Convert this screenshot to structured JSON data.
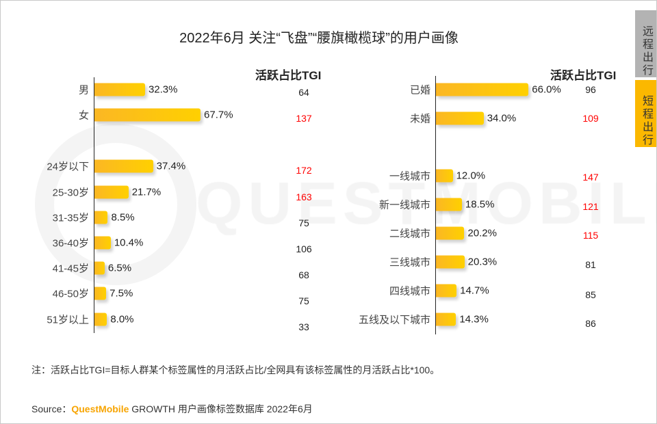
{
  "title": "2022年6月 关注“飞盘”“腰旗橄榄球”的用户画像",
  "watermark": "QUESTMOBILE",
  "tabs": [
    {
      "label": "远程出行",
      "color": "#b3b3b3",
      "active": false
    },
    {
      "label": "短程出行",
      "color": "#fbb800",
      "active": true
    }
  ],
  "tgi_header": "活跃占比TGI",
  "note": "注：活跃占比TGI=目标人群某个标签属性的月活跃占比/全网具有该标签属性的月活跃占比*100。",
  "source": {
    "prefix": "Source：",
    "brand": "QuestMobile",
    "text": "GROWTH 用户画像标签数据库 2022年6月"
  },
  "colors": {
    "bar_start": "#fbb724",
    "bar_end": "#ffd000",
    "tgi_high": "#ff0000"
  },
  "chart_data": [
    {
      "type": "bar",
      "orientation": "horizontal",
      "unit": "%",
      "tgi_header": "活跃占比TGI",
      "categories": [
        "男",
        "女",
        "24岁以下",
        "25-30岁",
        "31-35岁",
        "36-40岁",
        "41-45岁",
        "46-50岁",
        "51岁以上"
      ],
      "values": [
        32.3,
        67.7,
        37.4,
        21.7,
        8.5,
        10.4,
        6.5,
        7.5,
        8.0
      ],
      "value_labels": [
        "32.3%",
        "67.7%",
        "37.4%",
        "21.7%",
        "8.5%",
        "10.4%",
        "6.5%",
        "7.5%",
        "8.0%"
      ],
      "tgi": [
        64,
        137,
        172,
        163,
        75,
        106,
        68,
        75,
        33
      ]
    },
    {
      "type": "bar",
      "orientation": "horizontal",
      "unit": "%",
      "tgi_header": "活跃占比TGI",
      "categories": [
        "已婚",
        "未婚",
        "一线城市",
        "新一线城市",
        "二线城市",
        "三线城市",
        "四线城市",
        "五线及以下城市"
      ],
      "values": [
        66.0,
        34.0,
        12.0,
        18.5,
        20.2,
        20.3,
        14.7,
        14.3
      ],
      "value_labels": [
        "66.0%",
        "34.0%",
        "12.0%",
        "18.5%",
        "20.2%",
        "20.3%",
        "14.7%",
        "14.3%"
      ],
      "tgi": [
        96,
        109,
        147,
        121,
        115,
        81,
        85,
        86
      ]
    }
  ]
}
